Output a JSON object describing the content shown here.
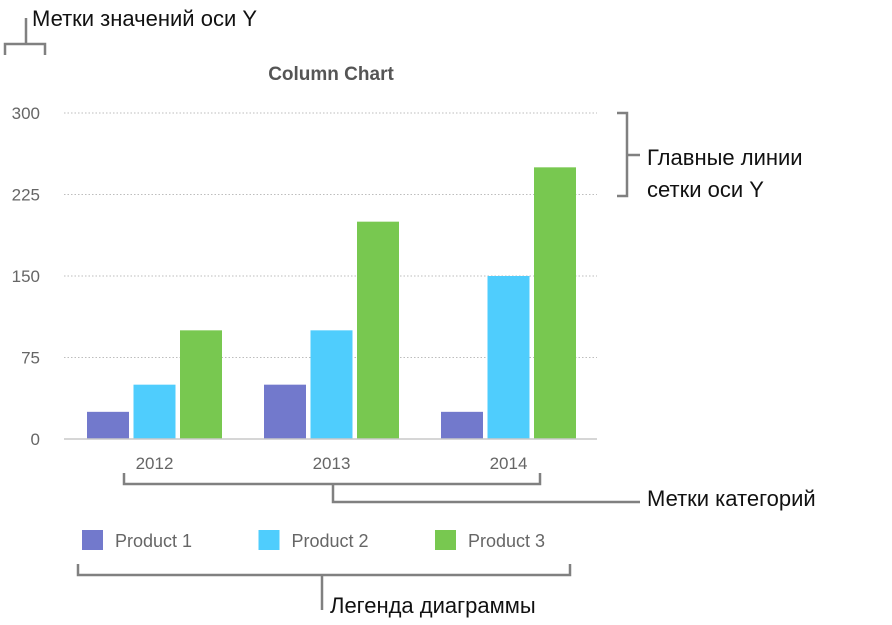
{
  "chart_data": {
    "type": "bar",
    "title": "Column Chart",
    "categories": [
      "2012",
      "2013",
      "2014"
    ],
    "series": [
      {
        "name": "Product 1",
        "values": [
          25,
          50,
          25
        ],
        "color": "#7279cc"
      },
      {
        "name": "Product 2",
        "values": [
          50,
          100,
          150
        ],
        "color": "#4fcdfd"
      },
      {
        "name": "Product 3",
        "values": [
          100,
          200,
          250
        ],
        "color": "#78c850"
      }
    ],
    "ylim": [
      0,
      300
    ],
    "yticks": [
      "0",
      "75",
      "150",
      "225",
      "300"
    ],
    "grid": true,
    "legend": "bottom"
  },
  "annotations": {
    "y_labels": "Метки значений оси Y",
    "gridlines_line1": "Главные линии",
    "gridlines_line2": "сетки оси Y",
    "category_labels": "Метки категорий",
    "legend": "Легенда диаграммы"
  }
}
